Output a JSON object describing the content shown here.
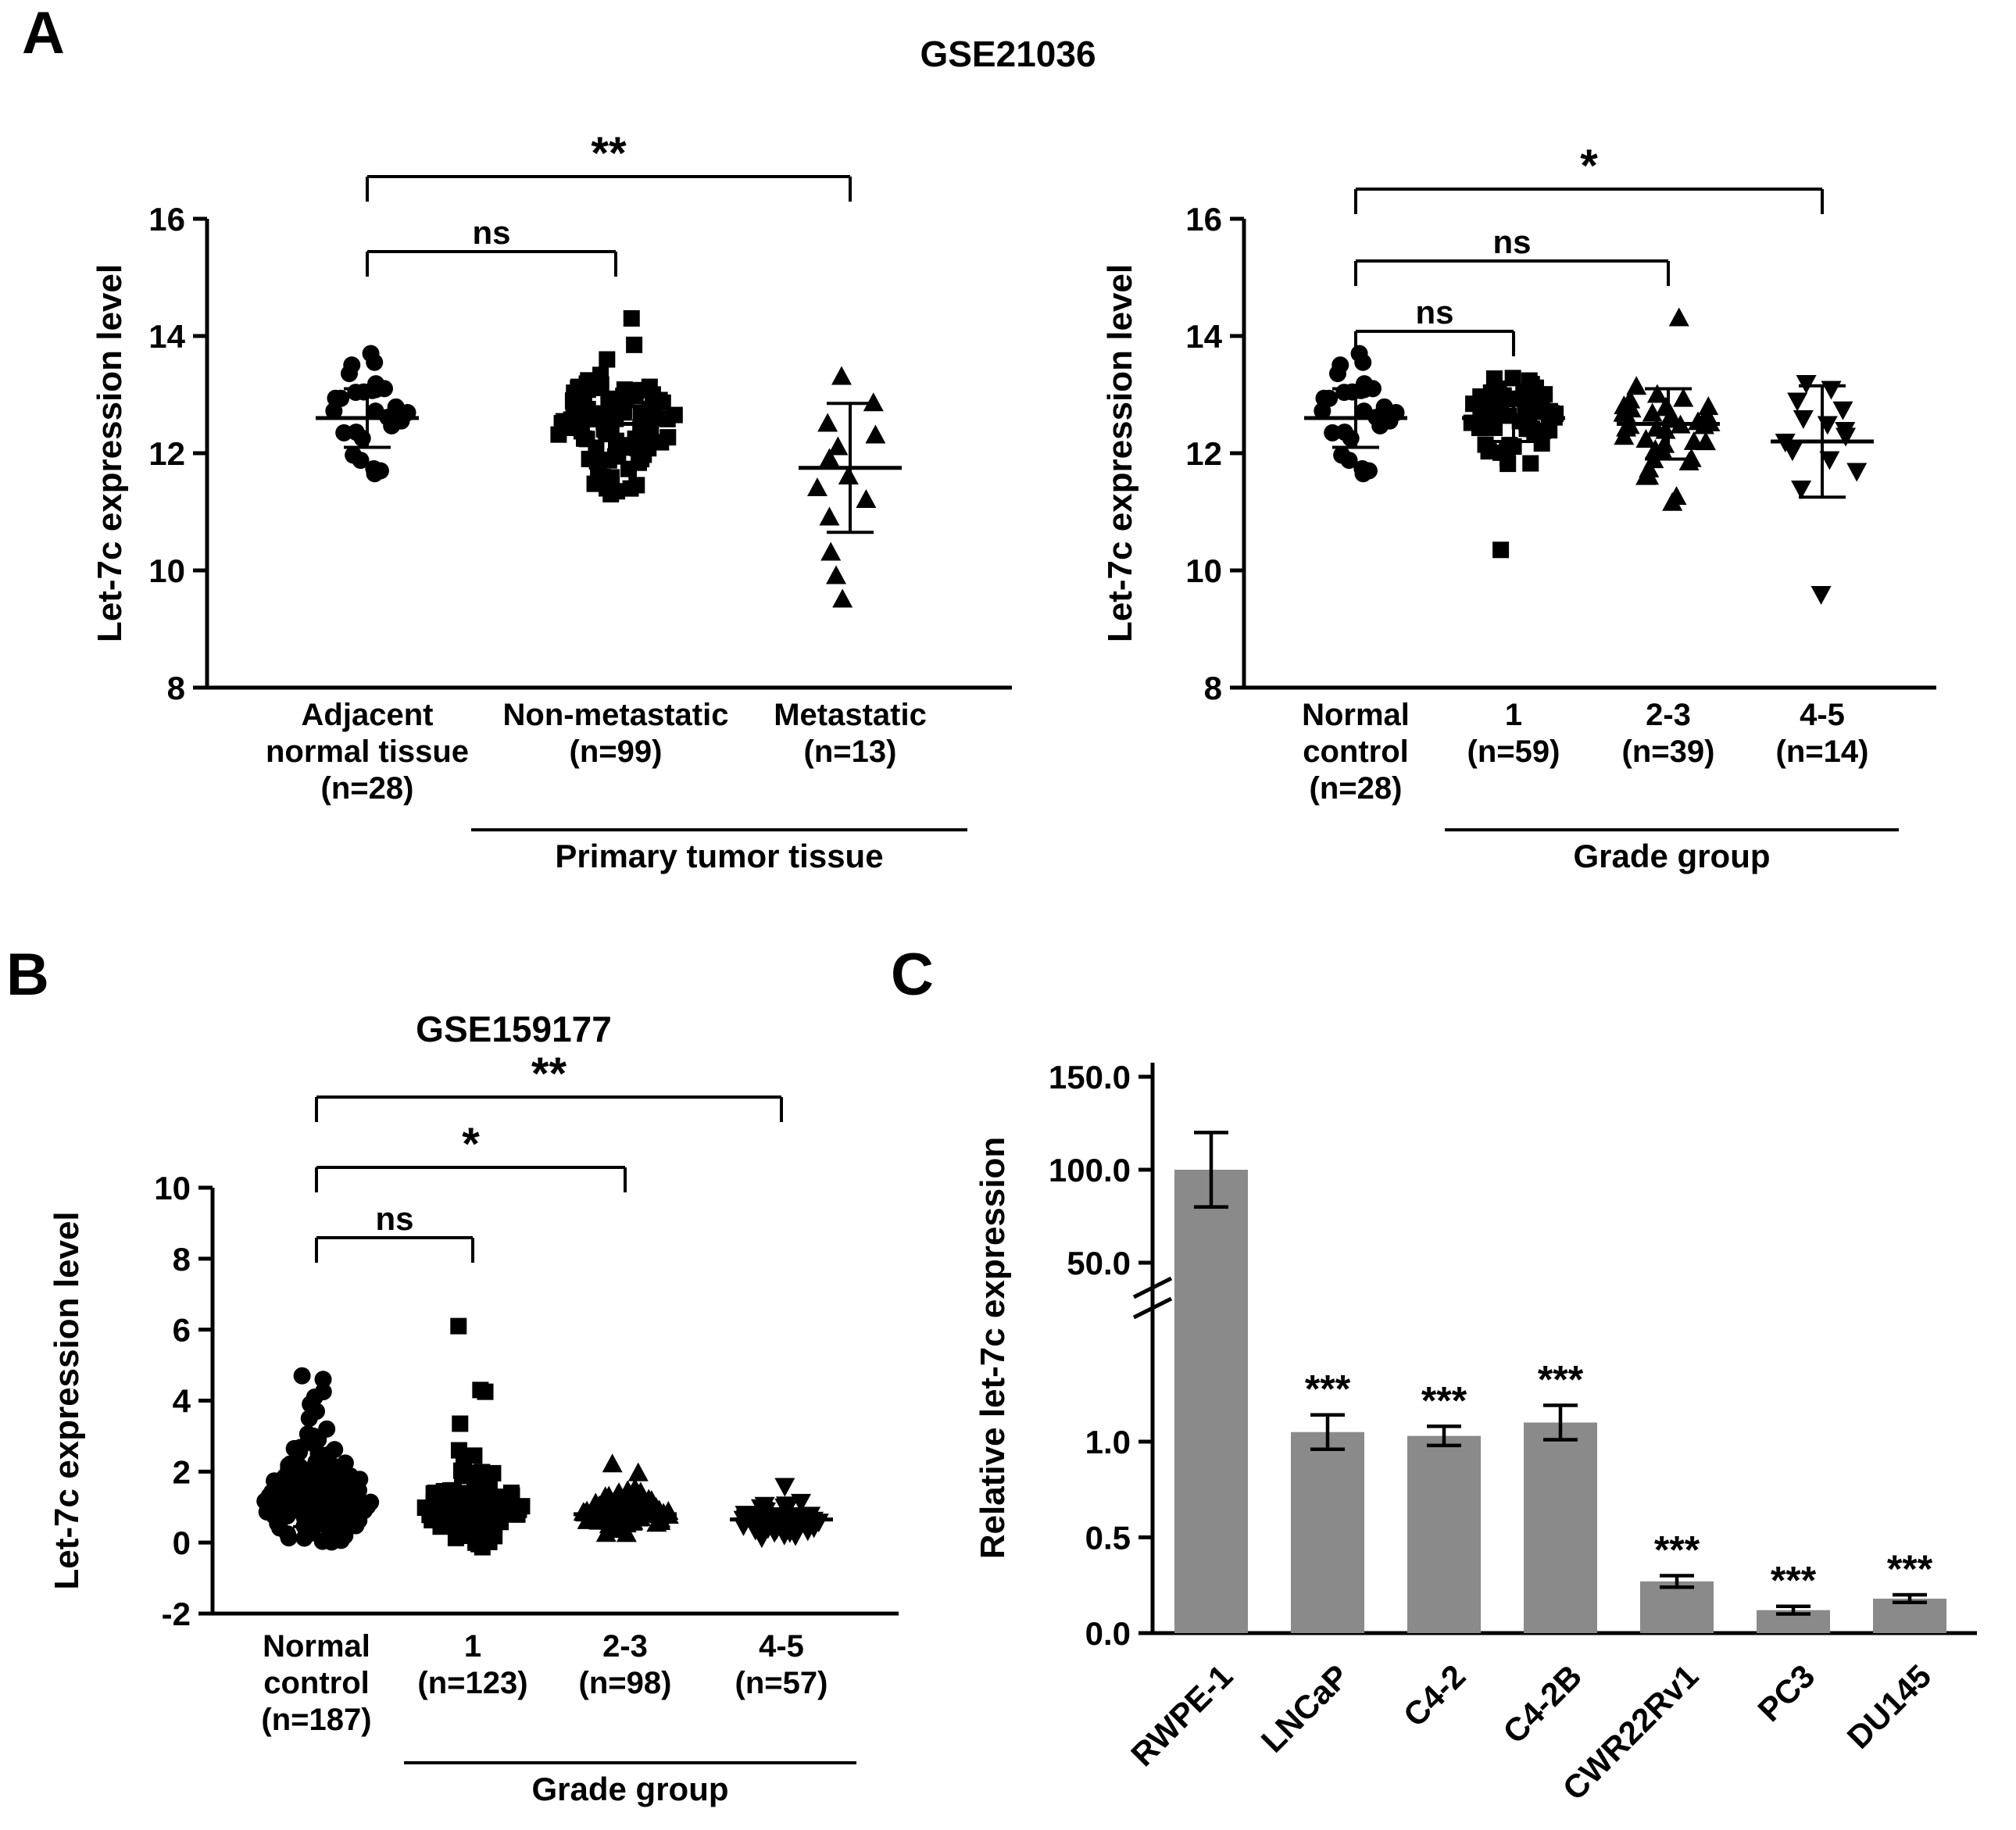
{
  "figure": {
    "background": "#ffffff",
    "panels": {
      "A": {
        "label": "A"
      },
      "B": {
        "label": "B"
      },
      "C": {
        "label": "C"
      }
    }
  },
  "chart_data": [
    {
      "id": "A-left",
      "type": "scatter",
      "title": "GSE21036",
      "ylabel": "Let-7c expression level",
      "ylim": [
        8,
        16
      ],
      "yticks": [
        8,
        10,
        12,
        14,
        16
      ],
      "groups": [
        {
          "label_lines": [
            "Adjacent",
            "normal tissue",
            "(n=28)"
          ],
          "marker": "circle",
          "n": 28,
          "mean": 12.6,
          "sd": 0.5,
          "min": 11.6,
          "max": 13.75,
          "outliers": [
            13.7,
            13.55,
            11.65,
            11.7
          ]
        },
        {
          "label_lines": [
            "Non-metastatic",
            "(n=99)"
          ],
          "marker": "square",
          "n": 99,
          "mean": 12.5,
          "sd": 0.5,
          "min": 11.25,
          "max": 14.3,
          "outliers": [
            14.3,
            13.6,
            11.3,
            11.35,
            11.4
          ]
        },
        {
          "label_lines": [
            "Metastatic",
            "(n=13)"
          ],
          "marker": "triangle-up",
          "n": 13,
          "mean": 11.75,
          "sd": 1.1,
          "points": [
            13.3,
            12.85,
            12.5,
            12.3,
            12.1,
            11.9,
            11.6,
            11.4,
            11.2,
            10.9,
            10.3,
            9.9,
            9.5
          ]
        }
      ],
      "group_axis": {
        "label": "Primary tumor tissue",
        "span": [
          1,
          2
        ]
      },
      "significance": [
        {
          "from": 0,
          "to": 1,
          "label": "ns"
        },
        {
          "from": 0,
          "to": 2,
          "label": "**"
        }
      ]
    },
    {
      "id": "A-right",
      "type": "scatter",
      "title": "GSE21036",
      "ylabel": "Let-7c expression level",
      "ylim": [
        8,
        16
      ],
      "yticks": [
        8,
        10,
        12,
        14,
        16
      ],
      "groups": [
        {
          "label_lines": [
            "Normal",
            "control",
            "(n=28)"
          ],
          "marker": "circle",
          "n": 28,
          "mean": 12.6,
          "sd": 0.5,
          "min": 11.6,
          "max": 13.75,
          "outliers": [
            13.7,
            13.55,
            11.65,
            11.7
          ]
        },
        {
          "label_lines": [
            "1",
            "(n=59)"
          ],
          "marker": "square",
          "n": 59,
          "mean": 12.6,
          "sd": 0.4,
          "min": 11.5,
          "max": 13.3,
          "outliers": [
            10.35
          ]
        },
        {
          "label_lines": [
            "2-3",
            "(n=39)"
          ],
          "marker": "triangle-up",
          "n": 39,
          "mean": 12.5,
          "sd": 0.6,
          "min": 11.2,
          "max": 13.4,
          "outliers": [
            14.3,
            11.15
          ]
        },
        {
          "label_lines": [
            "4-5",
            "(n=14)"
          ],
          "marker": "triangle-down",
          "n": 14,
          "mean": 12.2,
          "sd": 0.95,
          "points": [
            13.2,
            13.1,
            12.9,
            12.75,
            12.6,
            12.5,
            12.4,
            12.3,
            12.2,
            12.05,
            11.9,
            11.7,
            11.4,
            9.6
          ]
        }
      ],
      "group_axis": {
        "label": "Grade group",
        "span": [
          1,
          3
        ]
      },
      "significance": [
        {
          "from": 0,
          "to": 1,
          "label": "ns"
        },
        {
          "from": 0,
          "to": 2,
          "label": "ns"
        },
        {
          "from": 0,
          "to": 3,
          "label": "*"
        }
      ]
    },
    {
      "id": "B",
      "type": "scatter",
      "title": "GSE159177",
      "ylabel": "Let-7c expression level",
      "ylim": [
        -2,
        10
      ],
      "yticks": [
        -2,
        0,
        2,
        4,
        6,
        8,
        10
      ],
      "groups": [
        {
          "label_lines": [
            "Normal",
            "control",
            "(n=187)"
          ],
          "marker": "circle",
          "n": 187,
          "mean": 1.2,
          "sd": 0.75,
          "min": 0.0,
          "max": 4.0,
          "outliers": [
            4.7,
            4.6,
            4.25,
            4.1,
            3.9,
            3.7,
            3.5,
            3.2,
            2.9
          ]
        },
        {
          "label_lines": [
            "1",
            "(n=123)"
          ],
          "marker": "square",
          "n": 123,
          "mean": 1.0,
          "sd": 0.5,
          "min": -0.2,
          "max": 2.3,
          "outliers": [
            6.1,
            4.3,
            4.25,
            3.35,
            2.6,
            2.45
          ]
        },
        {
          "label_lines": [
            "2-3",
            "(n=98)"
          ],
          "marker": "triangle-up",
          "n": 98,
          "mean": 0.8,
          "sd": 0.3,
          "min": 0.2,
          "max": 1.7,
          "outliers": [
            2.2,
            1.95
          ]
        },
        {
          "label_lines": [
            "4-5",
            "(n=57)"
          ],
          "marker": "triangle-down",
          "n": 57,
          "mean": 0.65,
          "sd": 0.3,
          "min": 0.05,
          "max": 1.55,
          "outliers": [
            1.6
          ]
        }
      ],
      "group_axis": {
        "label": "Grade group",
        "span": [
          1,
          3
        ]
      },
      "significance": [
        {
          "from": 0,
          "to": 1,
          "label": "ns"
        },
        {
          "from": 0,
          "to": 2,
          "label": "*"
        },
        {
          "from": 0,
          "to": 3,
          "label": "**"
        }
      ]
    },
    {
      "id": "C",
      "type": "bar",
      "ylabel": "Relative let-7c expression",
      "bar_color": "#8a8a8a",
      "categories": [
        "RWPE-1",
        "LNCaP",
        "C4-2",
        "C4-2B",
        "CWR22Rv1",
        "PC3",
        "DU145"
      ],
      "values": [
        100,
        1.05,
        1.03,
        1.1,
        0.27,
        0.12,
        0.18
      ],
      "errors": [
        20,
        0.09,
        0.05,
        0.09,
        0.03,
        0.02,
        0.02
      ],
      "significance": [
        "",
        "***",
        "***",
        "***",
        "***",
        "***",
        "***"
      ],
      "axis_break": {
        "lower_max": 1.7,
        "upper_min": 50
      },
      "yticks_lower": [
        {
          "value": 0,
          "label": "0.0"
        },
        {
          "value": 0.5,
          "label": "0.5"
        },
        {
          "value": 1.0,
          "label": "1.0"
        }
      ],
      "yticks_upper": [
        {
          "value": 50,
          "label": "50.0"
        },
        {
          "value": 100,
          "label": "100.0"
        },
        {
          "value": 150,
          "label": "150.0"
        }
      ]
    }
  ]
}
